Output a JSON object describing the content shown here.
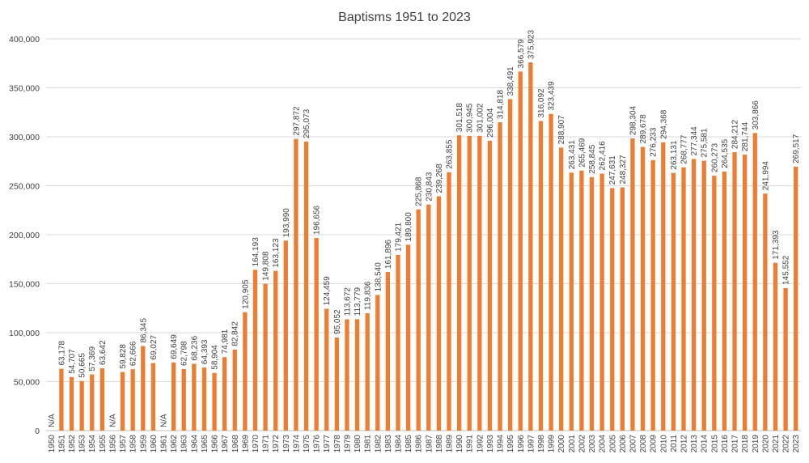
{
  "chart_data": {
    "type": "bar",
    "title": "Baptisms 1951 to 2023",
    "xlabel": "",
    "ylabel": "",
    "ylim": [
      0,
      400000
    ],
    "yticks": [
      0,
      50000,
      100000,
      150000,
      200000,
      250000,
      300000,
      350000,
      400000
    ],
    "ytick_labels": [
      "0",
      "50,000",
      "100,000",
      "150,000",
      "200,000",
      "250,000",
      "300,000",
      "350,000",
      "400,000"
    ],
    "grid": true,
    "colors": {
      "bar": "#ed7d31",
      "grid": "#d9d9d9",
      "text": "#404040"
    },
    "categories": [
      "1950",
      "1951",
      "1952",
      "1953",
      "1954",
      "1955",
      "1956",
      "1957",
      "1958",
      "1959",
      "1960",
      "1961",
      "1962",
      "1963",
      "1964",
      "1965",
      "1966",
      "1967",
      "1968",
      "1969",
      "1970",
      "1971",
      "1972",
      "1973",
      "1974",
      "1975",
      "1976",
      "1977",
      "1978",
      "1979",
      "1980",
      "1981",
      "1982",
      "1983",
      "1984",
      "1985",
      "1986",
      "1987",
      "1988",
      "1989",
      "1990",
      "1991",
      "1992",
      "1993",
      "1994",
      "1995",
      "1996",
      "1997",
      "1998",
      "1999",
      "2000",
      "2001",
      "2002",
      "2003",
      "2004",
      "2005",
      "2006",
      "2007",
      "2008",
      "2009",
      "2010",
      "2011",
      "2012",
      "2013",
      "2014",
      "2015",
      "2016",
      "2017",
      "2018",
      "2019",
      "2020",
      "2021",
      "2022",
      "2023"
    ],
    "values": [
      null,
      63178,
      54707,
      50665,
      57369,
      63642,
      null,
      59828,
      62666,
      86345,
      69027,
      null,
      69649,
      62798,
      68236,
      64393,
      58904,
      74981,
      82842,
      120905,
      164193,
      149808,
      163123,
      193990,
      297872,
      295073,
      196656,
      124459,
      95052,
      113672,
      113779,
      119836,
      138540,
      161896,
      179421,
      189800,
      225868,
      230843,
      239268,
      263855,
      301518,
      300945,
      301002,
      296004,
      314818,
      338491,
      366579,
      375923,
      316092,
      323439,
      288907,
      263431,
      265469,
      258845,
      262416,
      247631,
      248327,
      298304,
      289678,
      276233,
      294368,
      263131,
      268777,
      277344,
      275581,
      260273,
      264535,
      284212,
      281744,
      303866,
      241994,
      171393,
      145552,
      269517
    ],
    "data_labels": [
      "N/A",
      "63,178",
      "54,707",
      "50,665",
      "57,369",
      "63,642",
      "N/A",
      "59,828",
      "62,666",
      "86,345",
      "69,027",
      "N/A",
      "69,649",
      "62,798",
      "68,236",
      "64,393",
      "58,904",
      "74,981",
      "82,842",
      "120,905",
      "164,193",
      "149,808",
      "163,123",
      "193,990",
      "297,872",
      "295,073",
      "196,656",
      "124,459",
      "95,052",
      "113,672",
      "113,779",
      "119,836",
      "138,540",
      "161,896",
      "179,421",
      "189,800",
      "225,868",
      "230,843",
      "239,268",
      "263,855",
      "301,518",
      "300,945",
      "301,002",
      "296,004",
      "314,818",
      "338,491",
      "366,579",
      "375,923",
      "316,092",
      "323,439",
      "288,907",
      "263,431",
      "265,469",
      "258,845",
      "262,416",
      "247,631",
      "248,327",
      "298,304",
      "289,678",
      "276,233",
      "294,368",
      "263,131",
      "268,777",
      "277,344",
      "275,581",
      "260,273",
      "264,535",
      "284,212",
      "281,744",
      "303,866",
      "241,994",
      "171,393",
      "145,552",
      "269,517"
    ]
  }
}
